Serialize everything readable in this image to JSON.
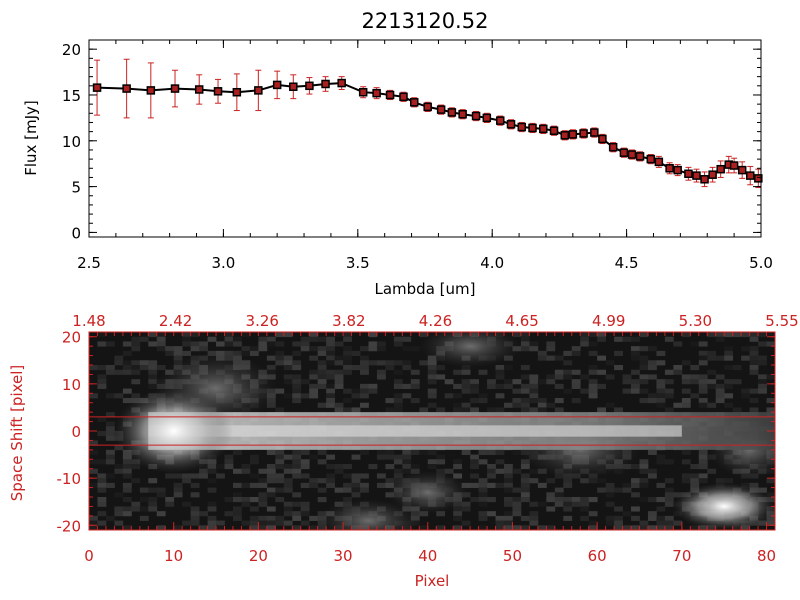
{
  "colors": {
    "frame_top": "#000000",
    "frame_bottom": "#cc2222",
    "errorbar": "#cc2222",
    "marker": "#000000",
    "marker_fill": "#aa2020"
  },
  "chart_data": [
    {
      "type": "line",
      "title": "2213120.52",
      "xlabel": "Lambda [um]",
      "ylabel": "Flux [mJy]",
      "xlim": [
        2.5,
        5.0
      ],
      "ylim": [
        -0.5,
        21
      ],
      "xticks": [
        "2.5",
        "3.0",
        "3.5",
        "4.0",
        "4.5",
        "5.0"
      ],
      "yticks": [
        "0",
        "5",
        "10",
        "15",
        "20"
      ],
      "x": [
        2.53,
        2.64,
        2.73,
        2.82,
        2.91,
        2.98,
        3.05,
        3.13,
        3.2,
        3.26,
        3.32,
        3.38,
        3.44,
        3.52,
        3.57,
        3.62,
        3.67,
        3.71,
        3.76,
        3.81,
        3.85,
        3.89,
        3.94,
        3.98,
        4.03,
        4.07,
        4.11,
        4.15,
        4.19,
        4.23,
        4.27,
        4.3,
        4.34,
        4.38,
        4.41,
        4.45,
        4.49,
        4.52,
        4.55,
        4.59,
        4.62,
        4.66,
        4.69,
        4.73,
        4.76,
        4.79,
        4.82,
        4.85,
        4.88,
        4.9,
        4.93,
        4.96,
        4.99
      ],
      "y": [
        15.8,
        15.7,
        15.5,
        15.7,
        15.6,
        15.4,
        15.3,
        15.5,
        16.1,
        15.9,
        16.0,
        16.2,
        16.3,
        15.3,
        15.2,
        15.0,
        14.8,
        14.2,
        13.7,
        13.4,
        13.1,
        12.9,
        12.7,
        12.5,
        12.2,
        11.8,
        11.5,
        11.4,
        11.3,
        11.1,
        10.6,
        10.7,
        10.8,
        10.9,
        10.2,
        9.3,
        8.7,
        8.5,
        8.3,
        8.0,
        7.7,
        7.0,
        6.8,
        6.4,
        6.2,
        5.8,
        6.3,
        6.9,
        7.4,
        7.3,
        6.8,
        6.2,
        5.9
      ],
      "yerr": [
        3.0,
        3.2,
        3.0,
        2.0,
        1.6,
        1.3,
        2.0,
        2.2,
        1.5,
        1.3,
        0.9,
        0.8,
        0.7,
        0.6,
        0.6,
        0.5,
        0.5,
        0.5,
        0.5,
        0.5,
        0.5,
        0.5,
        0.5,
        0.5,
        0.5,
        0.5,
        0.5,
        0.5,
        0.5,
        0.5,
        0.5,
        0.5,
        0.5,
        0.5,
        0.5,
        0.5,
        0.5,
        0.5,
        0.5,
        0.5,
        0.6,
        0.6,
        0.6,
        0.7,
        0.7,
        0.8,
        0.8,
        0.9,
        0.9,
        0.8,
        0.9,
        1.0,
        1.0
      ]
    },
    {
      "type": "heatmap",
      "xlabel": "Pixel",
      "ylabel": "Space Shift [pixel]",
      "xlim": [
        0,
        81
      ],
      "ylim": [
        -21,
        21
      ],
      "xticks": [
        "0",
        "10",
        "20",
        "30",
        "40",
        "50",
        "60",
        "70",
        "80"
      ],
      "yticks": [
        "-20",
        "-10",
        "0",
        "10",
        "20"
      ],
      "top_axis_ticks": [
        "1.48",
        "2.42",
        "3.26",
        "3.82",
        "4.26",
        "4.65",
        "4.99",
        "5.30",
        "5.55"
      ],
      "extraction_band": [
        -3,
        3
      ],
      "colormap": "grayscale"
    }
  ]
}
